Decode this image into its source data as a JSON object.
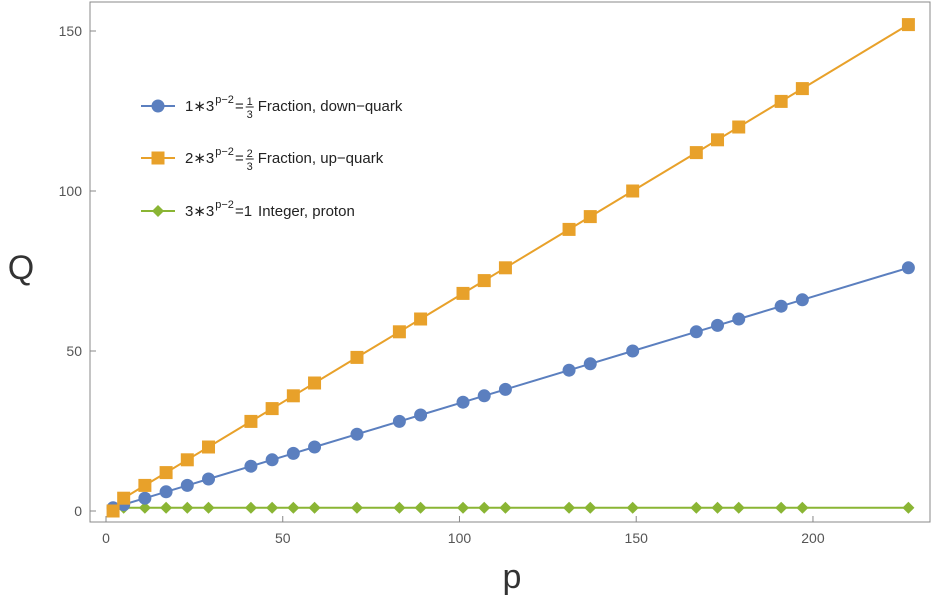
{
  "chart_data": {
    "type": "line",
    "xlabel": "p",
    "ylabel": "Q",
    "xlim": [
      0,
      230
    ],
    "ylim": [
      0,
      160
    ],
    "xticks": [
      0,
      50,
      100,
      150,
      200
    ],
    "yticks": [
      0,
      50,
      100,
      150
    ],
    "grid": false,
    "legend_position": "top-left",
    "x": [
      2,
      5,
      11,
      17,
      23,
      29,
      41,
      47,
      53,
      59,
      71,
      83,
      89,
      101,
      107,
      113,
      131,
      137,
      149,
      167,
      173,
      179,
      191,
      197,
      227
    ],
    "series": [
      {
        "legend": {
          "prefix": "1∗3",
          "exponent": "p−2",
          "eq": "=",
          "num": "1",
          "den": "3",
          "suffix": "Fraction, down−quark"
        },
        "color": "#5b7fbf",
        "marker": "circle",
        "values": [
          1,
          2,
          4,
          6,
          8,
          10,
          14,
          16,
          18,
          20,
          24,
          28,
          30,
          34,
          36,
          38,
          44,
          46,
          50,
          56,
          58,
          60,
          64,
          66,
          76
        ]
      },
      {
        "legend": {
          "prefix": "2∗3",
          "exponent": "p−2",
          "eq": "=",
          "num": "2",
          "den": "3",
          "suffix": "Fraction, up−quark"
        },
        "color": "#e8a12a",
        "marker": "square",
        "values": [
          0,
          4,
          8,
          12,
          16,
          20,
          28,
          32,
          36,
          40,
          48,
          56,
          60,
          68,
          72,
          76,
          88,
          92,
          100,
          112,
          116,
          120,
          128,
          132,
          152
        ]
      },
      {
        "legend": {
          "prefix": "3∗3",
          "exponent": "p−2",
          "eq": "=1",
          "suffix": "Integer, proton"
        },
        "color": "#8ab534",
        "marker": "diamond",
        "values": [
          1,
          1,
          1,
          1,
          1,
          1,
          1,
          1,
          1,
          1,
          1,
          1,
          1,
          1,
          1,
          1,
          1,
          1,
          1,
          1,
          1,
          1,
          1,
          1,
          1
        ]
      }
    ]
  }
}
